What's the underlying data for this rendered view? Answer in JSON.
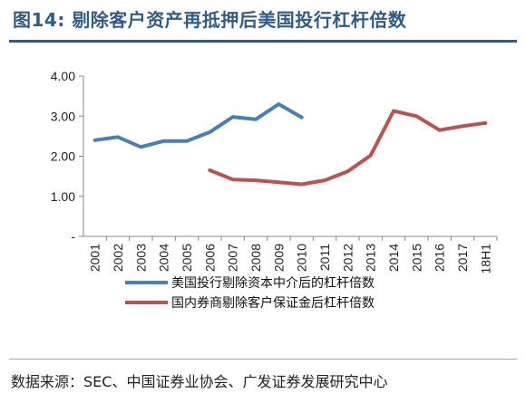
{
  "figure_title": "图14:   剔除客户资产再抵押后美国投行杠杆倍数",
  "source": "数据来源：SEC、中国证券业协会、广发证券发展研究中心",
  "chart_data": {
    "type": "line",
    "categories": [
      "2001",
      "2002",
      "2003",
      "2004",
      "2005",
      "2006",
      "2007",
      "2008",
      "2009",
      "2010",
      "2011",
      "2012",
      "2013",
      "2014",
      "2015",
      "2016",
      "2017",
      "18H1"
    ],
    "y_ticks": [
      "-",
      "1.00",
      "2.00",
      "3.00",
      "4.00"
    ],
    "ylim": [
      0,
      4
    ],
    "grid": false,
    "legend_position": "bottom",
    "series": [
      {
        "name": "美国投行剔除资本中介后的杠杆倍数",
        "color": "#4a7ebb",
        "values": [
          2.4,
          2.48,
          2.23,
          2.38,
          2.38,
          2.6,
          2.98,
          2.92,
          3.3,
          2.97,
          null,
          null,
          null,
          null,
          null,
          null,
          null,
          null
        ]
      },
      {
        "name": "国内券商剔除客户保证金后杠杆倍数",
        "color": "#c0504d",
        "values": [
          null,
          null,
          null,
          null,
          null,
          1.65,
          1.42,
          1.4,
          1.35,
          1.3,
          1.4,
          1.62,
          2.02,
          3.13,
          3.0,
          2.65,
          2.75,
          2.83
        ]
      }
    ]
  }
}
